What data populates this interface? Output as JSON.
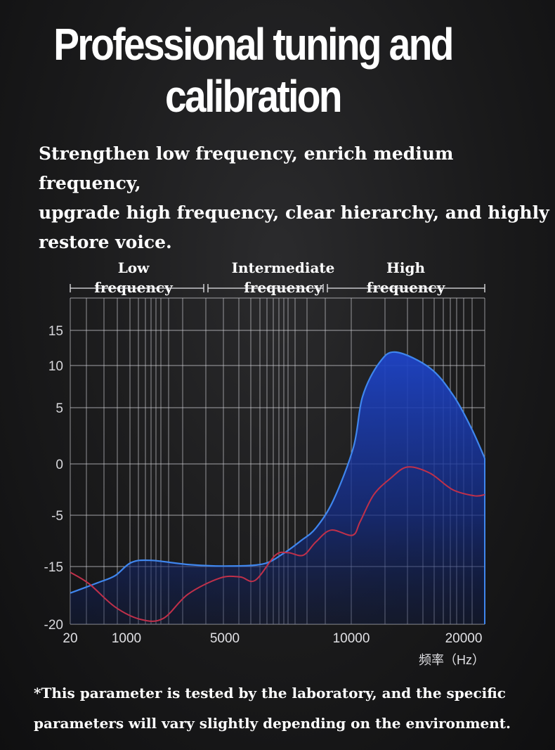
{
  "header": {
    "title_line1": "Professional tuning and",
    "title_line2": "calibration",
    "subtitle": "Strengthen low frequency, enrich medium frequency,\nupgrade high frequency, clear hierarchy, and highly\nrestore voice."
  },
  "footnote": "*This parameter is tested by the laboratory, and the specific parameters will vary slightly depending on the environment.",
  "chart_data": {
    "type": "area",
    "xlabel": "频率（Hz）",
    "ylabel": "",
    "x_ticks": [
      "20",
      "1000",
      "5000",
      "10000",
      "20000"
    ],
    "y_ticks": [
      15,
      10,
      5,
      0,
      -5,
      -15,
      -20
    ],
    "ylim": [
      -20,
      18
    ],
    "xlim": [
      20,
      23000
    ],
    "bands": [
      {
        "label": "Low\nfrequency",
        "range": [
          20,
          3800
        ]
      },
      {
        "label": "Intermediate\nfrequency",
        "range": [
          3800,
          8300
        ]
      },
      {
        "label": "High\nfrequency",
        "range": [
          8300,
          23000
        ]
      }
    ],
    "series": [
      {
        "color": "#3f86ee",
        "fill": "#1a3ca8",
        "x": [
          20,
          500,
          800,
          1200,
          2000,
          3500,
          5000,
          6500,
          7300,
          8000,
          8600,
          9300,
          10200,
          11000,
          12500,
          14000,
          17000,
          19000,
          21000,
          23000
        ],
        "y": [
          -17.3,
          -16.4,
          -15.8,
          -14.2,
          -13.8,
          -14.6,
          -14.9,
          -14.5,
          -12.5,
          -10,
          -7.5,
          -3.5,
          1.5,
          6.3,
          10.4,
          11.9,
          9.7,
          6.6,
          3.3,
          0.5
        ]
      },
      {
        "color": "#c0304a",
        "x": [
          20,
          350,
          800,
          1600,
          2500,
          3500,
          4800,
          5600,
          6200,
          7000,
          7500,
          8100,
          8600,
          9200,
          10100,
          10800,
          12000,
          13500,
          15000,
          17000,
          19000,
          21500,
          23000
        ],
        "y": [
          -15.5,
          -16.5,
          -18.5,
          -19.6,
          -19.5,
          -17.4,
          -16.0,
          -15.9,
          -16.2,
          -12.8,
          -12.3,
          -12.8,
          -10.2,
          -7.9,
          -8.9,
          -6.2,
          -3.0,
          -1.4,
          -0.3,
          -0.9,
          -2.5,
          -3.1,
          -3.0
        ]
      }
    ],
    "grid": true,
    "legend": "none"
  },
  "colors": {
    "background": "#1a1a1b",
    "grid": "#cfcfd4",
    "curve_blue": "#3f86ee",
    "curve_red": "#c0304a"
  }
}
